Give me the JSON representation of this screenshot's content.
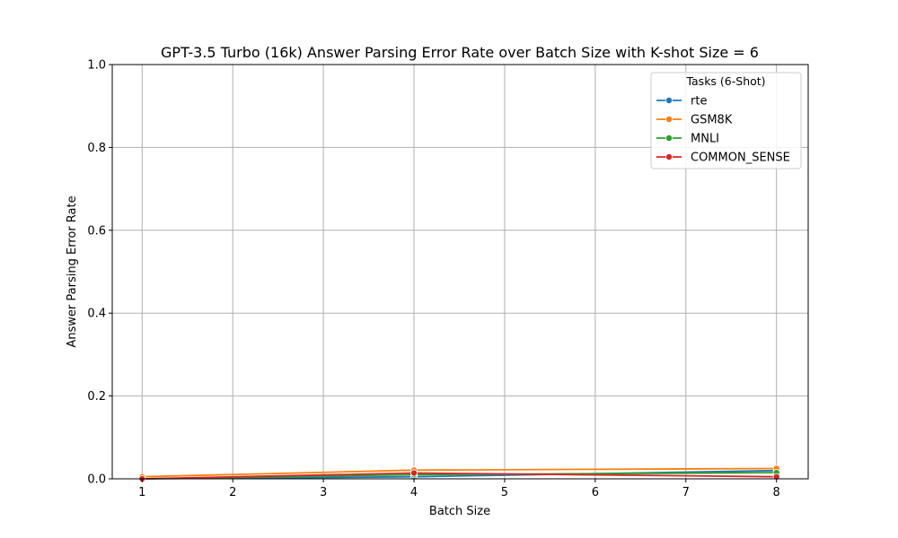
{
  "chart_data": {
    "type": "line",
    "title": "GPT-3.5 Turbo (16k) Answer Parsing Error Rate over Batch Size with K-shot Size = 6",
    "xlabel": "Batch Size",
    "ylabel": "Answer Parsing Error Rate",
    "xlim": [
      0.67,
      8.35
    ],
    "ylim": [
      0,
      1.0
    ],
    "x_ticks": [
      "1",
      "2",
      "3",
      "4",
      "5",
      "6",
      "7",
      "8"
    ],
    "y_ticks": [
      "0.0",
      "0.2",
      "0.4",
      "0.6",
      "0.8",
      "1.0"
    ],
    "grid": true,
    "legend": {
      "title": "Tasks (6-Shot)",
      "placement": "top-right"
    },
    "x": [
      1,
      4,
      8
    ],
    "series": [
      {
        "name": "rte",
        "color": "#1f77b4",
        "values": [
          0.0,
          0.005,
          0.02
        ]
      },
      {
        "name": "GSM8K",
        "color": "#ff7f0e",
        "values": [
          0.005,
          0.021,
          0.025
        ]
      },
      {
        "name": "MNLI",
        "color": "#2ca02c",
        "values": [
          0.0,
          0.01,
          0.015
        ]
      },
      {
        "name": "COMMON_SENSE",
        "color": "#d62728",
        "values": [
          0.0,
          0.014,
          0.005
        ]
      }
    ]
  }
}
